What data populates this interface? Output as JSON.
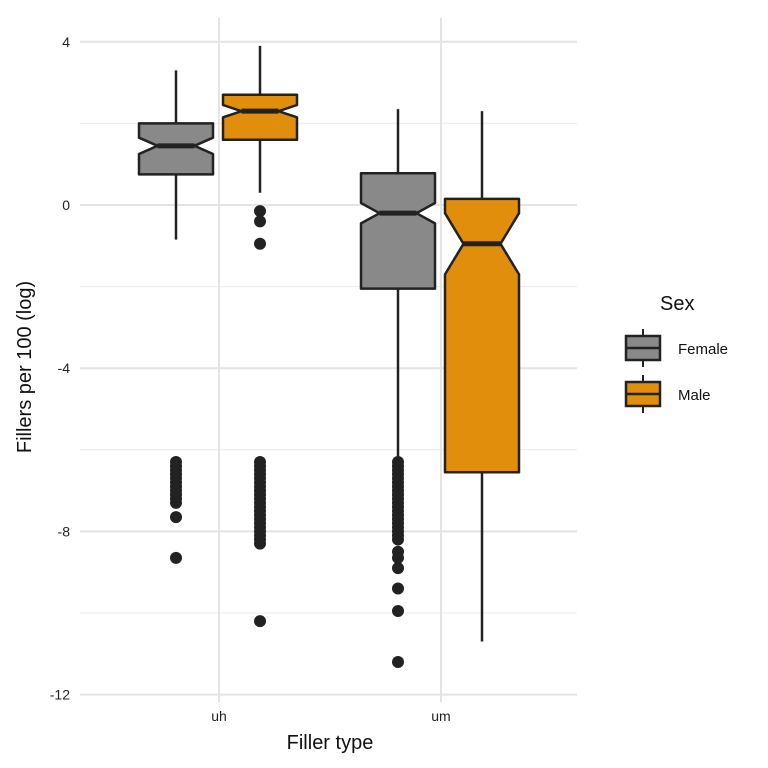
{
  "chart_data": {
    "type": "boxplot",
    "notched": true,
    "xlabel": "Filler type",
    "ylabel": "Fillers per 100 (log)",
    "categories": [
      "uh",
      "um"
    ],
    "ylim": [
      -12,
      4.5
    ],
    "yticks": [
      4,
      0,
      -4,
      -8,
      -12
    ],
    "grid": true,
    "legend": {
      "title": "Sex",
      "placement": "right"
    },
    "series": [
      {
        "name": "Female",
        "color": "#898989",
        "boxes": [
          {
            "category": "uh",
            "q1": 0.75,
            "median": 1.45,
            "q3": 2.0,
            "notch_low": 1.25,
            "notch_high": 1.65,
            "whisker_low": -0.85,
            "whisker_high": 3.3,
            "outliers": [
              -6.3,
              -6.4,
              -6.5,
              -6.6,
              -6.7,
              -6.8,
              -6.9,
              -7.0,
              -7.1,
              -7.2,
              -7.3,
              -7.65,
              -8.65
            ]
          },
          {
            "category": "um",
            "q1": -2.05,
            "median": -0.2,
            "q3": 0.78,
            "notch_low": -0.45,
            "notch_high": 0.05,
            "whisker_low": -6.2,
            "whisker_high": 2.35,
            "outliers": [
              -6.3,
              -6.4,
              -6.5,
              -6.6,
              -6.7,
              -6.8,
              -6.9,
              -7.0,
              -7.1,
              -7.2,
              -7.3,
              -7.4,
              -7.5,
              -7.6,
              -7.7,
              -7.8,
              -7.9,
              -8.0,
              -8.1,
              -8.2,
              -8.5,
              -8.65,
              -8.9,
              -9.4,
              -9.95,
              -11.2
            ]
          }
        ]
      },
      {
        "name": "Male",
        "color": "#e08e0b",
        "boxes": [
          {
            "category": "uh",
            "q1": 1.6,
            "median": 2.3,
            "q3": 2.7,
            "notch_low": 2.15,
            "notch_high": 2.45,
            "whisker_low": 0.3,
            "whisker_high": 3.9,
            "outliers": [
              -0.15,
              -0.4,
              -0.95,
              -6.3,
              -6.4,
              -6.5,
              -6.6,
              -6.7,
              -6.8,
              -6.9,
              -7.0,
              -7.1,
              -7.2,
              -7.3,
              -7.4,
              -7.5,
              -7.6,
              -7.7,
              -7.8,
              -7.9,
              -8.0,
              -8.1,
              -8.2,
              -8.3,
              -10.2
            ]
          },
          {
            "category": "um",
            "q1": -6.55,
            "median": -0.95,
            "q3": 0.15,
            "notch_low": -1.7,
            "notch_high": -0.2,
            "whisker_low": -10.7,
            "whisker_high": 2.3,
            "outliers": []
          }
        ]
      }
    ]
  }
}
